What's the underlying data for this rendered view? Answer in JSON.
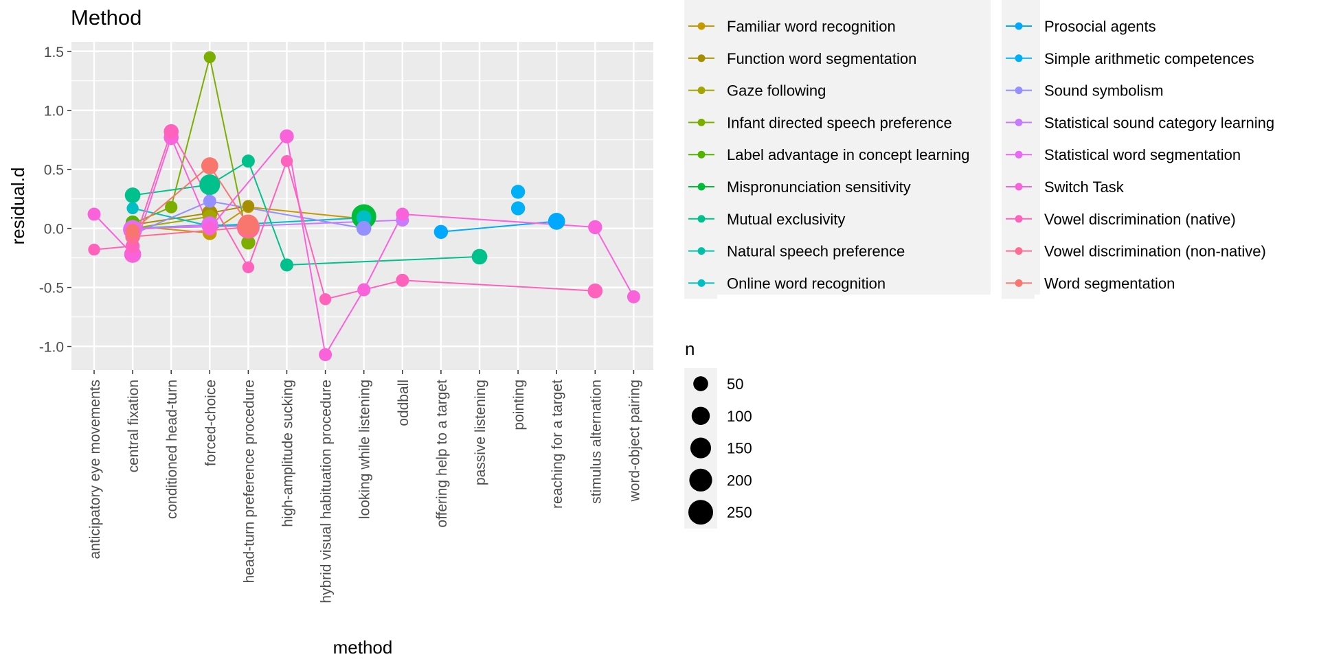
{
  "chart_data": {
    "type": "scatter",
    "title": "Method",
    "xlabel": "method",
    "ylabel": "residual.d",
    "categories": [
      "anticipatory eye movements",
      "central fixation",
      "conditioned head-turn",
      "forced-choice",
      "head-turn preference procedure",
      "high-amplitude sucking",
      "hybrid visual habituation procedure",
      "looking while listening",
      "oddball",
      "offering help to a target",
      "passive listening",
      "pointing",
      "reaching for a target",
      "stimulus alternation",
      "word-object pairing"
    ],
    "y_ticks": [
      "1.5",
      "1.0",
      "0.5",
      "0.0",
      "-0.5",
      "-1.0"
    ],
    "ylim": [
      -1.2,
      1.58
    ],
    "grid": true,
    "legend_title_color": "",
    "legend_title_size": "n",
    "size_legend": [
      50,
      100,
      150,
      200,
      250
    ],
    "series": [
      {
        "name": "Familiar word recognition",
        "color": "#C49A00",
        "lined": true,
        "points": [
          [
            1,
            0.02,
            30
          ],
          [
            3,
            -0.04,
            40
          ],
          [
            4,
            0.18,
            20
          ],
          [
            7,
            0.08,
            40
          ]
        ]
      },
      {
        "name": "Function word segmentation",
        "color": "#A58E00",
        "lined": true,
        "points": [
          [
            1,
            0.03,
            50
          ],
          [
            3,
            0.13,
            60
          ],
          [
            4,
            0.19,
            20
          ]
        ]
      },
      {
        "name": "Gaze following",
        "color": "#A3A500",
        "lined": true,
        "points": [
          [
            1,
            0.0,
            40
          ],
          [
            3,
            0.1,
            40
          ]
        ]
      },
      {
        "name": "Infant directed speech preference",
        "color": "#7CAE00",
        "lined": true,
        "points": [
          [
            1,
            0.04,
            40
          ],
          [
            2,
            0.18,
            25
          ],
          [
            3,
            1.45,
            20
          ],
          [
            4,
            -0.12,
            40
          ]
        ]
      },
      {
        "name": "Label advantage in concept learning",
        "color": "#53B400",
        "lined": true,
        "points": [
          [
            1,
            0.05,
            40
          ]
        ]
      },
      {
        "name": "Mispronunciation sensitivity",
        "color": "#00BC38",
        "lined": true,
        "points": [
          [
            7,
            0.1,
            250
          ]
        ]
      },
      {
        "name": "Mutual exclusivity",
        "color": "#00C08B",
        "lined": true,
        "points": [
          [
            1,
            0.28,
            60
          ],
          [
            3,
            0.37,
            150
          ],
          [
            4,
            0.57,
            30
          ],
          [
            5,
            -0.31,
            30
          ],
          [
            10,
            -0.24,
            60
          ]
        ]
      },
      {
        "name": "Natural speech preference",
        "color": "#00C1A8",
        "lined": true,
        "points": [
          [
            1,
            0.0,
            40
          ],
          [
            3,
            0.03,
            60
          ],
          [
            4,
            0.02,
            50
          ]
        ]
      },
      {
        "name": "Online word recognition",
        "color": "#00BFC4",
        "lined": true,
        "points": [
          [
            1,
            0.17,
            20
          ],
          [
            3,
            0.02,
            60
          ],
          [
            7,
            0.09,
            50
          ]
        ]
      },
      {
        "name": "Prosocial agents",
        "color": "#00A9FF",
        "lined": true,
        "points": [
          [
            9,
            -0.03,
            40
          ],
          [
            12,
            0.06,
            80
          ]
        ]
      },
      {
        "name": "Simple arithmetic competences",
        "color": "#00B0F6",
        "lined": false,
        "points": [
          [
            11,
            0.31,
            40
          ],
          [
            11,
            0.17,
            40
          ]
        ]
      },
      {
        "name": "Sound symbolism",
        "color": "#9590FF",
        "lined": true,
        "points": [
          [
            1,
            -0.05,
            50
          ],
          [
            3,
            0.23,
            30
          ],
          [
            7,
            0.0,
            50
          ]
        ]
      },
      {
        "name": "Statistical sound category learning",
        "color": "#C77CFF",
        "lined": true,
        "points": [
          [
            1,
            0.0,
            60
          ],
          [
            4,
            0.02,
            40
          ],
          [
            8,
            0.07,
            30
          ]
        ]
      },
      {
        "name": "Statistical word segmentation",
        "color": "#E76BF3",
        "lined": true,
        "points": [
          [
            1,
            -0.01,
            120
          ],
          [
            3,
            0.03,
            80
          ]
        ]
      },
      {
        "name": "Switch Task",
        "color": "#FA62DB",
        "lined": true,
        "points": [
          [
            0,
            0.12,
            30
          ],
          [
            1,
            -0.22,
            80
          ],
          [
            2,
            0.77,
            50
          ],
          [
            3,
            0.0,
            40
          ],
          [
            5,
            0.78,
            40
          ],
          [
            6,
            -1.07,
            30
          ],
          [
            7,
            -0.52,
            30
          ],
          [
            8,
            0.12,
            30
          ],
          [
            13,
            0.01,
            40
          ],
          [
            14,
            -0.58,
            30
          ]
        ]
      },
      {
        "name": "Vowel discrimination (native)",
        "color": "#FF62BC",
        "lined": true,
        "points": [
          [
            0,
            -0.18,
            20
          ],
          [
            1,
            -0.15,
            40
          ],
          [
            2,
            0.82,
            50
          ],
          [
            4,
            -0.33,
            20
          ],
          [
            5,
            0.57,
            20
          ],
          [
            6,
            -0.6,
            20
          ],
          [
            8,
            -0.44,
            30
          ],
          [
            13,
            -0.53,
            50
          ]
        ]
      },
      {
        "name": "Vowel discrimination (non-native)",
        "color": "#FF6C91",
        "lined": true,
        "points": [
          [
            1,
            -0.07,
            50
          ],
          [
            4,
            0.01,
            200
          ]
        ]
      },
      {
        "name": "Word segmentation",
        "color": "#F8766D",
        "lined": true,
        "points": [
          [
            1,
            -0.02,
            40
          ],
          [
            3,
            0.53,
            80
          ],
          [
            4,
            0.03,
            150
          ]
        ]
      }
    ]
  }
}
